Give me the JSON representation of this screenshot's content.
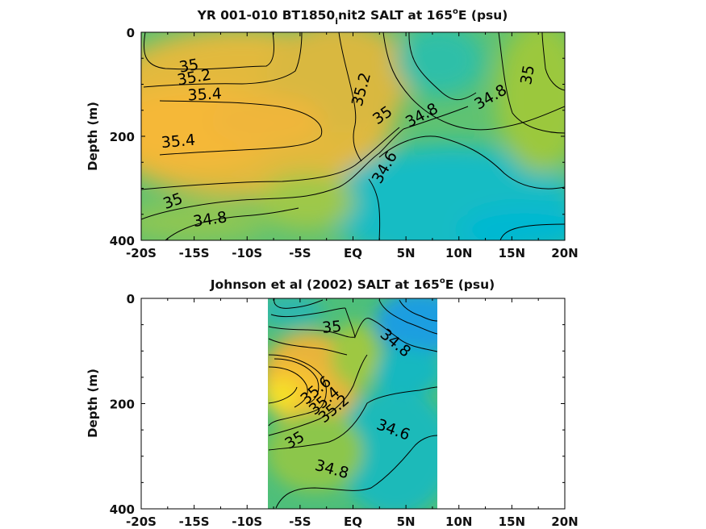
{
  "chart_data": [
    {
      "type": "heatmap",
      "title_main": "YR 001-010 BT1850",
      "title_sub": "i",
      "title_rest": "nit2 SALT at 165",
      "title_sup": "o",
      "title_end": "E (psu)",
      "ylabel": "Depth (m)",
      "xlim": [
        -20,
        20
      ],
      "ylim": [
        0,
        400
      ],
      "x_ticks": [
        -20,
        -15,
        -10,
        -5,
        0,
        5,
        10,
        15,
        20
      ],
      "x_tick_labels": [
        "-20S",
        "-15S",
        "-10S",
        "-5S",
        "EQ",
        "5N",
        "10N",
        "15N",
        "20N"
      ],
      "y_ticks": [
        0,
        200,
        400
      ],
      "y_tick_labels": [
        "0",
        "200",
        "400"
      ],
      "data_xlim": [
        -20,
        20
      ],
      "salinity_levels": [
        34.4,
        34.6,
        34.8,
        35,
        35.2,
        35.4,
        35.6
      ],
      "contour_labels": [
        {
          "text": "35",
          "x": -15.5,
          "depth": 65,
          "angle": -10
        },
        {
          "text": "35.2",
          "x": -15.0,
          "depth": 87,
          "angle": -10
        },
        {
          "text": "35.4",
          "x": -14.0,
          "depth": 120,
          "angle": -3
        },
        {
          "text": "35.2",
          "x": 0.8,
          "depth": 110,
          "angle": -75
        },
        {
          "text": "35",
          "x": 2.8,
          "depth": 160,
          "angle": -35
        },
        {
          "text": "34.8",
          "x": 6.5,
          "depth": 160,
          "angle": -28
        },
        {
          "text": "34.8",
          "x": 13.0,
          "depth": 125,
          "angle": -30
        },
        {
          "text": "35",
          "x": 16.5,
          "depth": 82,
          "angle": -80
        },
        {
          "text": "35.4",
          "x": -16.5,
          "depth": 210,
          "angle": -5
        },
        {
          "text": "34.6",
          "x": 3.0,
          "depth": 260,
          "angle": -60
        },
        {
          "text": "35",
          "x": -17.0,
          "depth": 325,
          "angle": -20
        },
        {
          "text": "34.8",
          "x": -13.5,
          "depth": 360,
          "angle": -8
        }
      ]
    },
    {
      "type": "heatmap",
      "title_main": "Johnson et al (2002) SALT at 165",
      "title_sup": "o",
      "title_end": "E (psu)",
      "ylabel": "Depth (m)",
      "xlim": [
        -20,
        20
      ],
      "ylim": [
        0,
        400
      ],
      "x_ticks": [
        -20,
        -15,
        -10,
        -5,
        0,
        5,
        10,
        15,
        20
      ],
      "x_tick_labels": [
        "-20S",
        "-15S",
        "-10S",
        "-5S",
        "EQ",
        "5N",
        "10N",
        "15N",
        "20N"
      ],
      "y_ticks": [
        0,
        200,
        400
      ],
      "y_tick_labels": [
        "0",
        "200",
        "400"
      ],
      "data_xlim": [
        -8,
        8
      ],
      "salinity_levels": [
        34.2,
        34.4,
        34.6,
        34.8,
        35,
        35.2,
        35.4,
        35.6
      ],
      "contour_labels": [
        {
          "text": "35",
          "x": -2.0,
          "depth": 55,
          "angle": -5
        },
        {
          "text": "34.8",
          "x": 4.0,
          "depth": 85,
          "angle": 40
        },
        {
          "text": "35.6",
          "x": -3.5,
          "depth": 175,
          "angle": -40
        },
        {
          "text": "35.4",
          "x": -2.7,
          "depth": 195,
          "angle": -40
        },
        {
          "text": "35.2",
          "x": -1.8,
          "depth": 210,
          "angle": -40
        },
        {
          "text": "34.6",
          "x": 3.8,
          "depth": 250,
          "angle": 20
        },
        {
          "text": "35",
          "x": -5.5,
          "depth": 270,
          "angle": -30
        },
        {
          "text": "34.8",
          "x": -2.0,
          "depth": 325,
          "angle": 15
        }
      ]
    }
  ]
}
